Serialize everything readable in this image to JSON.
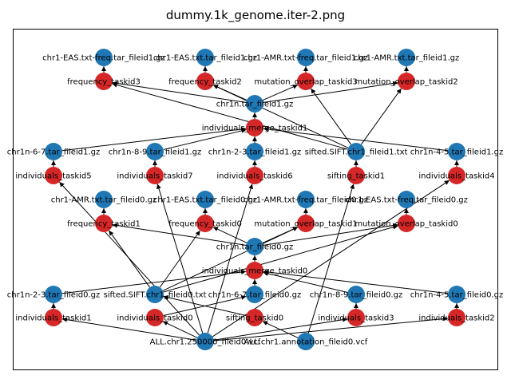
{
  "title": "dummy.1k_genome.iter-2.png",
  "colors": {
    "data_node": "#1f77b4",
    "task_node": "#d62728",
    "edge": "#000000",
    "background": "#ffffff"
  },
  "nodes": [
    {
      "id": "n1",
      "label": "chr1-EAS.txt-freq.tar_fileid1.gz",
      "kind": "data"
    },
    {
      "id": "n2",
      "label": "chr1-EAS.txt.tar_fileid1.gz",
      "kind": "data"
    },
    {
      "id": "n3",
      "label": "chr1-AMR.txt-freq.tar_fileid1.gz",
      "kind": "data"
    },
    {
      "id": "n4",
      "label": "chr1-AMR.txt.tar_fileid1.gz",
      "kind": "data"
    },
    {
      "id": "n5",
      "label": "frequency_taskid3",
      "kind": "task"
    },
    {
      "id": "n6",
      "label": "frequency_taskid2",
      "kind": "task"
    },
    {
      "id": "n7",
      "label": "mutation_overlap_taskid3",
      "kind": "task"
    },
    {
      "id": "n8",
      "label": "mutation_overlap_taskid2",
      "kind": "task"
    },
    {
      "id": "n9",
      "label": "chr1n.tar_fileid1.gz",
      "kind": "data"
    },
    {
      "id": "n10",
      "label": "individuals_merge_taskid1",
      "kind": "task"
    },
    {
      "id": "n11",
      "label": "chr1n-6-7.tar_fileid1.gz",
      "kind": "data"
    },
    {
      "id": "n12",
      "label": "chr1n-8-9.tar_fileid1.gz",
      "kind": "data"
    },
    {
      "id": "n13",
      "label": "chr1n-2-3.tar_fileid1.gz",
      "kind": "data"
    },
    {
      "id": "n14",
      "label": "sifted.SIFT.chr1_fileid1.txt",
      "kind": "data"
    },
    {
      "id": "n15",
      "label": "chr1n-4-5.tar_fileid1.gz",
      "kind": "data"
    },
    {
      "id": "n16",
      "label": "individuals_taskid5",
      "kind": "task"
    },
    {
      "id": "n17",
      "label": "individuals_taskid7",
      "kind": "task"
    },
    {
      "id": "n18",
      "label": "individuals_taskid6",
      "kind": "task"
    },
    {
      "id": "n19",
      "label": "sifting_taskid1",
      "kind": "task"
    },
    {
      "id": "n20",
      "label": "individuals_taskid4",
      "kind": "task"
    },
    {
      "id": "n21",
      "label": "chr1-AMR.txt.tar_fileid0.gz",
      "kind": "data"
    },
    {
      "id": "n22",
      "label": "chr1-EAS.txt.tar_fileid0.gz",
      "kind": "data"
    },
    {
      "id": "n23",
      "label": "chr1-AMR.txt-freq.tar_fileid0.gz",
      "kind": "data"
    },
    {
      "id": "n24",
      "label": "chr1-EAS.txt-freq.tar_fileid0.gz",
      "kind": "data"
    },
    {
      "id": "n25",
      "label": "frequency_taskid1",
      "kind": "task"
    },
    {
      "id": "n26",
      "label": "frequency_taskid0",
      "kind": "task"
    },
    {
      "id": "n27",
      "label": "mutation_overlap_taskid1",
      "kind": "task"
    },
    {
      "id": "n28",
      "label": "mutation_overlap_taskid0",
      "kind": "task"
    },
    {
      "id": "n29",
      "label": "chr1n.tar_fileid0.gz",
      "kind": "data"
    },
    {
      "id": "n30",
      "label": "individuals_merge_taskid0",
      "kind": "task"
    },
    {
      "id": "n31",
      "label": "chr1n-2-3.tar_fileid0.gz",
      "kind": "data"
    },
    {
      "id": "n32",
      "label": "sifted.SIFT.chr1_fileid0.txt",
      "kind": "data"
    },
    {
      "id": "n33",
      "label": "chr1n-6-7.tar_fileid0.gz",
      "kind": "data"
    },
    {
      "id": "n34",
      "label": "chr1n-8-9.tar_fileid0.gz",
      "kind": "data"
    },
    {
      "id": "n35",
      "label": "chr1n-4-5.tar_fileid0.gz",
      "kind": "data"
    },
    {
      "id": "n36",
      "label": "individuals_taskid1",
      "kind": "task"
    },
    {
      "id": "n37",
      "label": "individuals_taskid0",
      "kind": "task"
    },
    {
      "id": "n38",
      "label": "sifting_taskid0",
      "kind": "task"
    },
    {
      "id": "n39",
      "label": "individuals_taskid3",
      "kind": "task"
    },
    {
      "id": "n40",
      "label": "individuals_taskid2",
      "kind": "task"
    },
    {
      "id": "n41",
      "label": "ALL.chr1.250000_fileid0.vcf",
      "kind": "data"
    },
    {
      "id": "n42",
      "label": "ALL.chr1.annotation_fileid0.vcf",
      "kind": "data"
    }
  ],
  "edges": [
    [
      "n5",
      "n1"
    ],
    [
      "n6",
      "n2"
    ],
    [
      "n7",
      "n3"
    ],
    [
      "n8",
      "n4"
    ],
    [
      "n9",
      "n5"
    ],
    [
      "n9",
      "n6"
    ],
    [
      "n9",
      "n7"
    ],
    [
      "n9",
      "n8"
    ],
    [
      "n14",
      "n5"
    ],
    [
      "n14",
      "n6"
    ],
    [
      "n14",
      "n7"
    ],
    [
      "n14",
      "n8"
    ],
    [
      "n10",
      "n9"
    ],
    [
      "n11",
      "n10"
    ],
    [
      "n12",
      "n10"
    ],
    [
      "n13",
      "n10"
    ],
    [
      "n15",
      "n10"
    ],
    [
      "n16",
      "n11"
    ],
    [
      "n17",
      "n12"
    ],
    [
      "n18",
      "n13"
    ],
    [
      "n20",
      "n15"
    ],
    [
      "n19",
      "n14"
    ],
    [
      "n41",
      "n16"
    ],
    [
      "n41",
      "n17"
    ],
    [
      "n41",
      "n18"
    ],
    [
      "n41",
      "n20"
    ],
    [
      "n42",
      "n19"
    ],
    [
      "n25",
      "n21"
    ],
    [
      "n26",
      "n22"
    ],
    [
      "n27",
      "n23"
    ],
    [
      "n28",
      "n24"
    ],
    [
      "n29",
      "n25"
    ],
    [
      "n29",
      "n26"
    ],
    [
      "n29",
      "n27"
    ],
    [
      "n29",
      "n28"
    ],
    [
      "n32",
      "n25"
    ],
    [
      "n32",
      "n26"
    ],
    [
      "n32",
      "n27"
    ],
    [
      "n32",
      "n28"
    ],
    [
      "n30",
      "n29"
    ],
    [
      "n31",
      "n30"
    ],
    [
      "n33",
      "n30"
    ],
    [
      "n34",
      "n30"
    ],
    [
      "n35",
      "n30"
    ],
    [
      "n36",
      "n31"
    ],
    [
      "n37",
      "n33"
    ],
    [
      "n39",
      "n34"
    ],
    [
      "n40",
      "n35"
    ],
    [
      "n38",
      "n32"
    ],
    [
      "n41",
      "n36"
    ],
    [
      "n41",
      "n37"
    ],
    [
      "n41",
      "n39"
    ],
    [
      "n41",
      "n40"
    ],
    [
      "n42",
      "n38"
    ]
  ]
}
